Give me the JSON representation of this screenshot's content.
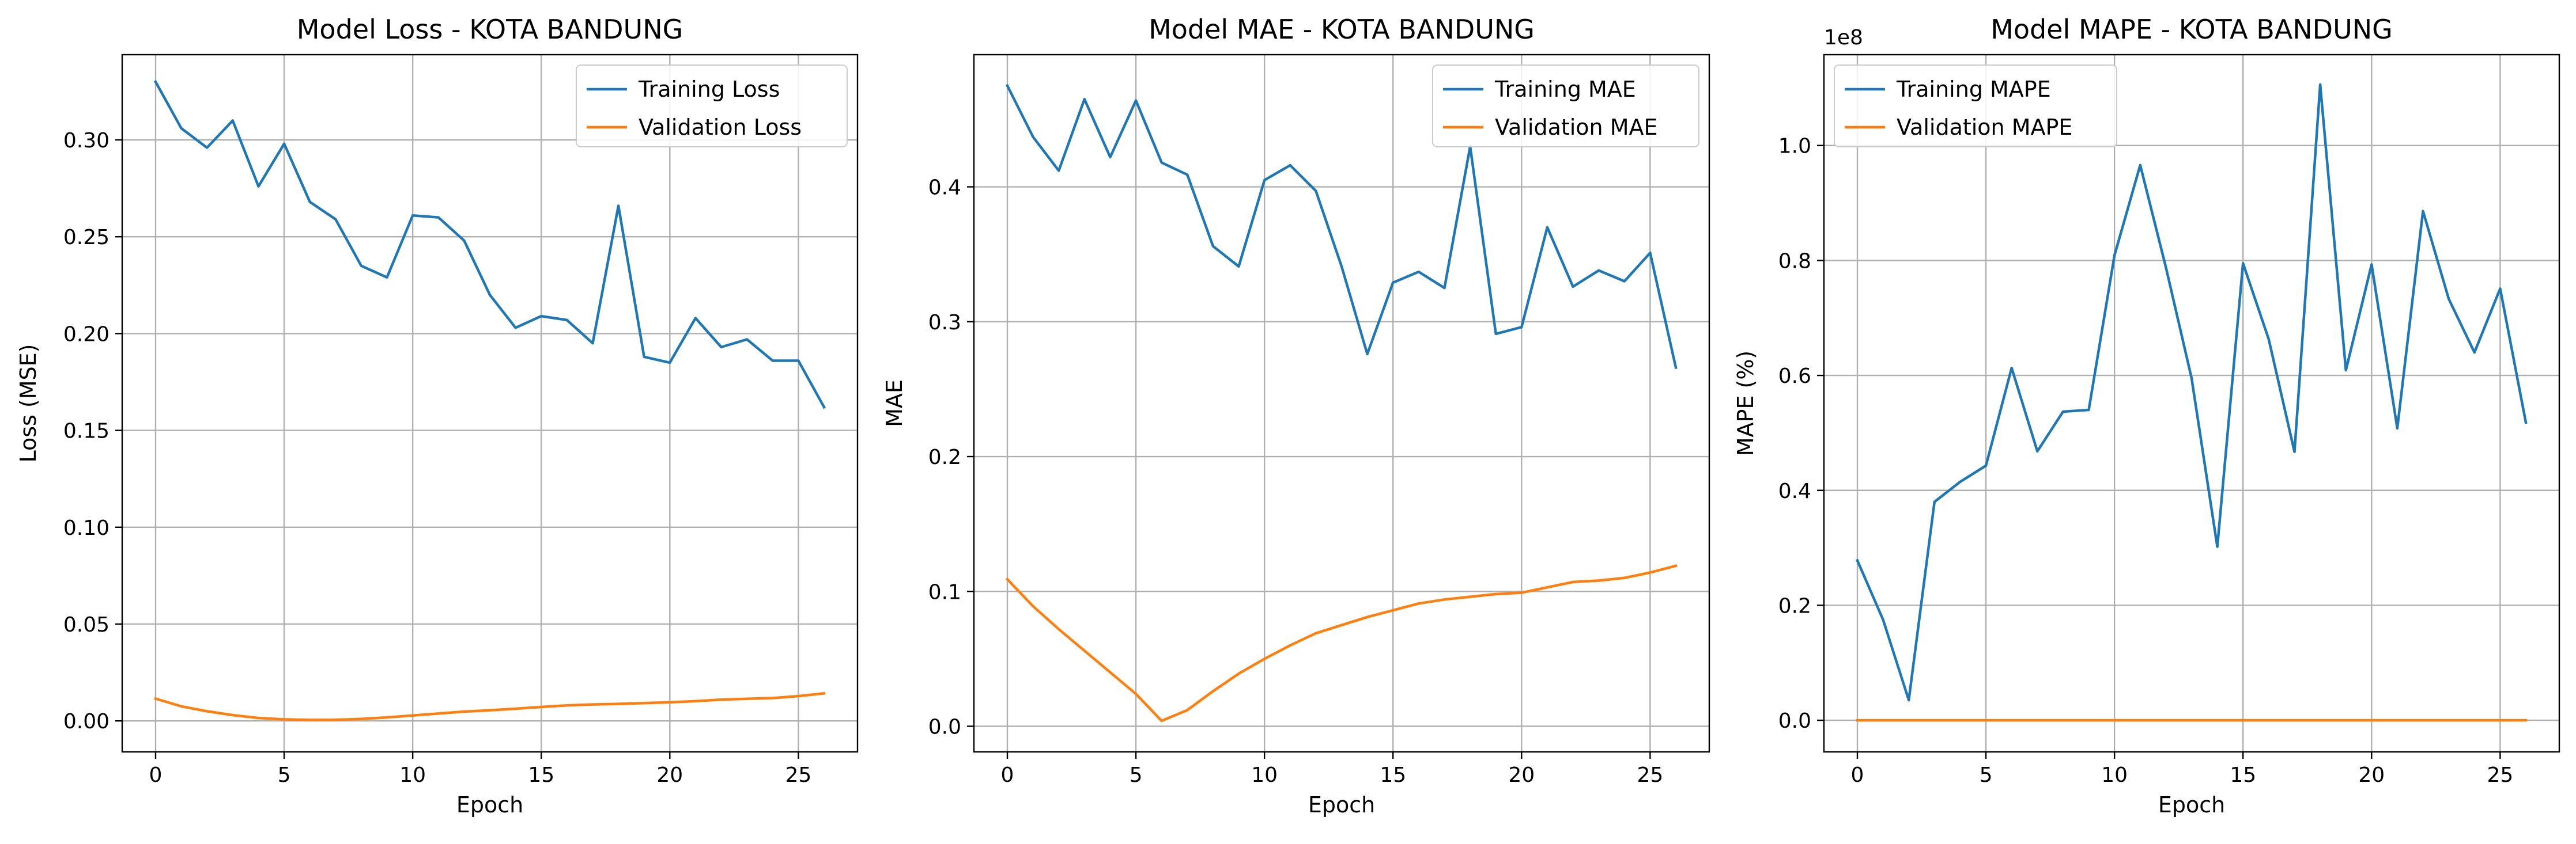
{
  "colors": {
    "training": "#1f77b4",
    "validation": "#ff7f0e",
    "grid": "#b0b0b0",
    "axes": "#000000"
  },
  "chart_data": [
    {
      "type": "line",
      "title": "Model Loss - KOTA BANDUNG",
      "xlabel": "Epoch",
      "ylabel": "Loss (MSE)",
      "xlim": [
        -1.3,
        27.3
      ],
      "ylim": [
        -0.016,
        0.344
      ],
      "xticks": [
        0,
        5,
        10,
        15,
        20,
        25
      ],
      "xtick_labels": [
        "0",
        "5",
        "10",
        "15",
        "20",
        "25"
      ],
      "yticks": [
        0.0,
        0.05,
        0.1,
        0.15,
        0.2,
        0.25,
        0.3
      ],
      "ytick_labels": [
        "0.00",
        "0.05",
        "0.10",
        "0.15",
        "0.20",
        "0.25",
        "0.30"
      ],
      "offset_text": "",
      "grid": true,
      "legend_position": "upper right",
      "x": [
        0,
        1,
        2,
        3,
        4,
        5,
        6,
        7,
        8,
        9,
        10,
        11,
        12,
        13,
        14,
        15,
        16,
        17,
        18,
        19,
        20,
        21,
        22,
        23,
        24,
        25,
        26
      ],
      "series": [
        {
          "name": "Training Loss",
          "color": "#1f77b4",
          "values": [
            0.33,
            0.306,
            0.296,
            0.31,
            0.276,
            0.298,
            0.268,
            0.259,
            0.235,
            0.229,
            0.261,
            0.26,
            0.248,
            0.22,
            0.203,
            0.209,
            0.207,
            0.195,
            0.266,
            0.188,
            0.185,
            0.208,
            0.193,
            0.197,
            0.186,
            0.186,
            0.162
          ]
        },
        {
          "name": "Validation Loss",
          "color": "#ff7f0e",
          "values": [
            0.0115,
            0.0075,
            0.005,
            0.003,
            0.0015,
            0.0008,
            0.0005,
            0.0006,
            0.001,
            0.0018,
            0.0028,
            0.0038,
            0.0048,
            0.0055,
            0.0063,
            0.0072,
            0.008,
            0.0085,
            0.0088,
            0.0092,
            0.0096,
            0.0102,
            0.011,
            0.0114,
            0.0118,
            0.0128,
            0.0142
          ]
        }
      ]
    },
    {
      "type": "line",
      "title": "Model MAE - KOTA BANDUNG",
      "xlabel": "Epoch",
      "ylabel": "MAE",
      "xlim": [
        -1.3,
        27.3
      ],
      "ylim": [
        -0.019,
        0.498
      ],
      "xticks": [
        0,
        5,
        10,
        15,
        20,
        25
      ],
      "xtick_labels": [
        "0",
        "5",
        "10",
        "15",
        "20",
        "25"
      ],
      "yticks": [
        0.0,
        0.1,
        0.2,
        0.3,
        0.4
      ],
      "ytick_labels": [
        "0.0",
        "0.1",
        "0.2",
        "0.3",
        "0.4"
      ],
      "offset_text": "",
      "grid": true,
      "legend_position": "upper right",
      "x": [
        0,
        1,
        2,
        3,
        4,
        5,
        6,
        7,
        8,
        9,
        10,
        11,
        12,
        13,
        14,
        15,
        16,
        17,
        18,
        19,
        20,
        21,
        22,
        23,
        24,
        25,
        26
      ],
      "series": [
        {
          "name": "Training MAE",
          "color": "#1f77b4",
          "values": [
            0.475,
            0.437,
            0.412,
            0.465,
            0.422,
            0.464,
            0.418,
            0.409,
            0.356,
            0.341,
            0.405,
            0.416,
            0.397,
            0.341,
            0.276,
            0.329,
            0.337,
            0.325,
            0.43,
            0.291,
            0.296,
            0.37,
            0.326,
            0.338,
            0.33,
            0.351,
            0.266
          ]
        },
        {
          "name": "Validation MAE",
          "color": "#ff7f0e",
          "values": [
            0.109,
            0.089,
            0.072,
            0.056,
            0.04,
            0.024,
            0.004,
            0.012,
            0.026,
            0.039,
            0.05,
            0.06,
            0.069,
            0.075,
            0.081,
            0.086,
            0.091,
            0.094,
            0.096,
            0.098,
            0.099,
            0.103,
            0.107,
            0.108,
            0.11,
            0.114,
            0.119
          ]
        }
      ]
    },
    {
      "type": "line",
      "title": "Model MAPE - KOTA BANDUNG",
      "xlabel": "Epoch",
      "ylabel": "MAPE (%)",
      "xlim": [
        -1.3,
        27.3
      ],
      "ylim": [
        -0.055,
        1.158
      ],
      "xticks": [
        0,
        5,
        10,
        15,
        20,
        25
      ],
      "xtick_labels": [
        "0",
        "5",
        "10",
        "15",
        "20",
        "25"
      ],
      "yticks": [
        0.0,
        0.2,
        0.4,
        0.6,
        0.8,
        1.0
      ],
      "ytick_labels": [
        "0.0",
        "0.2",
        "0.4",
        "0.6",
        "0.8",
        "1.0"
      ],
      "offset_text": "1e8",
      "grid": true,
      "legend_position": "upper left",
      "x": [
        0,
        1,
        2,
        3,
        4,
        5,
        6,
        7,
        8,
        9,
        10,
        11,
        12,
        13,
        14,
        15,
        16,
        17,
        18,
        19,
        20,
        21,
        22,
        23,
        24,
        25,
        26
      ],
      "series": [
        {
          "name": "Training MAPE",
          "color": "#1f77b4",
          "values": [
            0.278,
            0.175,
            0.035,
            0.38,
            0.415,
            0.443,
            0.613,
            0.468,
            0.537,
            0.54,
            0.809,
            0.966,
            0.788,
            0.595,
            0.302,
            0.795,
            0.663,
            0.467,
            1.106,
            0.609,
            0.793,
            0.508,
            0.886,
            0.733,
            0.64,
            0.751,
            0.518
          ]
        },
        {
          "name": "Validation MAPE",
          "color": "#ff7f0e",
          "values": [
            0,
            0,
            0,
            0,
            0,
            0,
            0,
            0,
            0,
            0,
            0,
            0,
            0,
            0,
            0,
            0,
            0,
            0,
            0,
            0,
            0,
            0,
            0,
            0,
            0,
            0,
            0
          ]
        }
      ]
    }
  ]
}
